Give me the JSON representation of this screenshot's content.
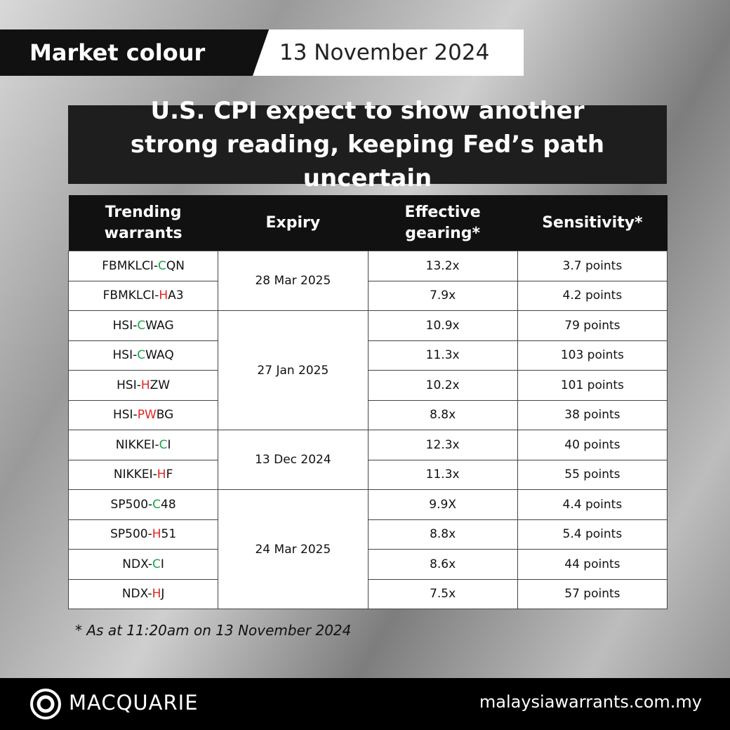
{
  "header": {
    "label": "Market colour",
    "date": "13 November 2024"
  },
  "headline": "U.S. CPI expect to show another strong reading, keeping Fed’s path uncertain",
  "table": {
    "columns": [
      "Trending warrants",
      "Expiry",
      "Effective gearing*",
      "Sensitivity*"
    ],
    "groups": [
      {
        "expiry": "28 Mar 2025",
        "rows": [
          {
            "prefix": "FBMKLCI-",
            "flag": "C",
            "flag_color": "#1aa34a",
            "suffix": "QN",
            "gearing": "13.2x",
            "sensitivity": "3.7 points"
          },
          {
            "prefix": "FBMKLCI-",
            "flag": "H",
            "flag_color": "#e0261f",
            "suffix": "A3",
            "gearing": "7.9x",
            "sensitivity": "4.2 points"
          }
        ]
      },
      {
        "expiry": "27 Jan 2025",
        "rows": [
          {
            "prefix": "HSI-",
            "flag": "C",
            "flag_color": "#1aa34a",
            "suffix": "WAG",
            "gearing": "10.9x",
            "sensitivity": "79 points"
          },
          {
            "prefix": "HSI-",
            "flag": "C",
            "flag_color": "#1aa34a",
            "suffix": "WAQ",
            "gearing": "11.3x",
            "sensitivity": "103 points"
          },
          {
            "prefix": "HSI-",
            "flag": "H",
            "flag_color": "#e0261f",
            "suffix": "ZW",
            "gearing": "10.2x",
            "sensitivity": "101 points"
          },
          {
            "prefix": "HSI-",
            "flag": "PW",
            "flag_color": "#e0261f",
            "suffix": "BG",
            "gearing": "8.8x",
            "sensitivity": "38 points"
          }
        ]
      },
      {
        "expiry": "13 Dec 2024",
        "rows": [
          {
            "prefix": "NIKKEI-",
            "flag": "C",
            "flag_color": "#1aa34a",
            "suffix": "I",
            "gearing": "12.3x",
            "sensitivity": "40 points"
          },
          {
            "prefix": "NIKKEI-",
            "flag": "H",
            "flag_color": "#e0261f",
            "suffix": "F",
            "gearing": "11.3x",
            "sensitivity": "55 points"
          }
        ]
      },
      {
        "expiry": "24 Mar 2025",
        "rows": [
          {
            "prefix": "SP500-",
            "flag": "C",
            "flag_color": "#1aa34a",
            "suffix": "48",
            "gearing": "9.9X",
            "sensitivity": "4.4 points"
          },
          {
            "prefix": "SP500-",
            "flag": "H",
            "flag_color": "#e0261f",
            "suffix": "51",
            "gearing": "8.8x",
            "sensitivity": "5.4 points"
          },
          {
            "prefix": "NDX-",
            "flag": "C",
            "flag_color": "#1aa34a",
            "suffix": "I",
            "gearing": "8.6x",
            "sensitivity": "44 points"
          },
          {
            "prefix": "NDX-",
            "flag": "H",
            "flag_color": "#e0261f",
            "suffix": "J",
            "gearing": "7.5x",
            "sensitivity": "57 points"
          }
        ]
      }
    ]
  },
  "footnote": "* As at 11:20am on 13 November 2024",
  "footer": {
    "brand": "MACQUARIE",
    "url": "malaysiawarrants.com.my"
  }
}
